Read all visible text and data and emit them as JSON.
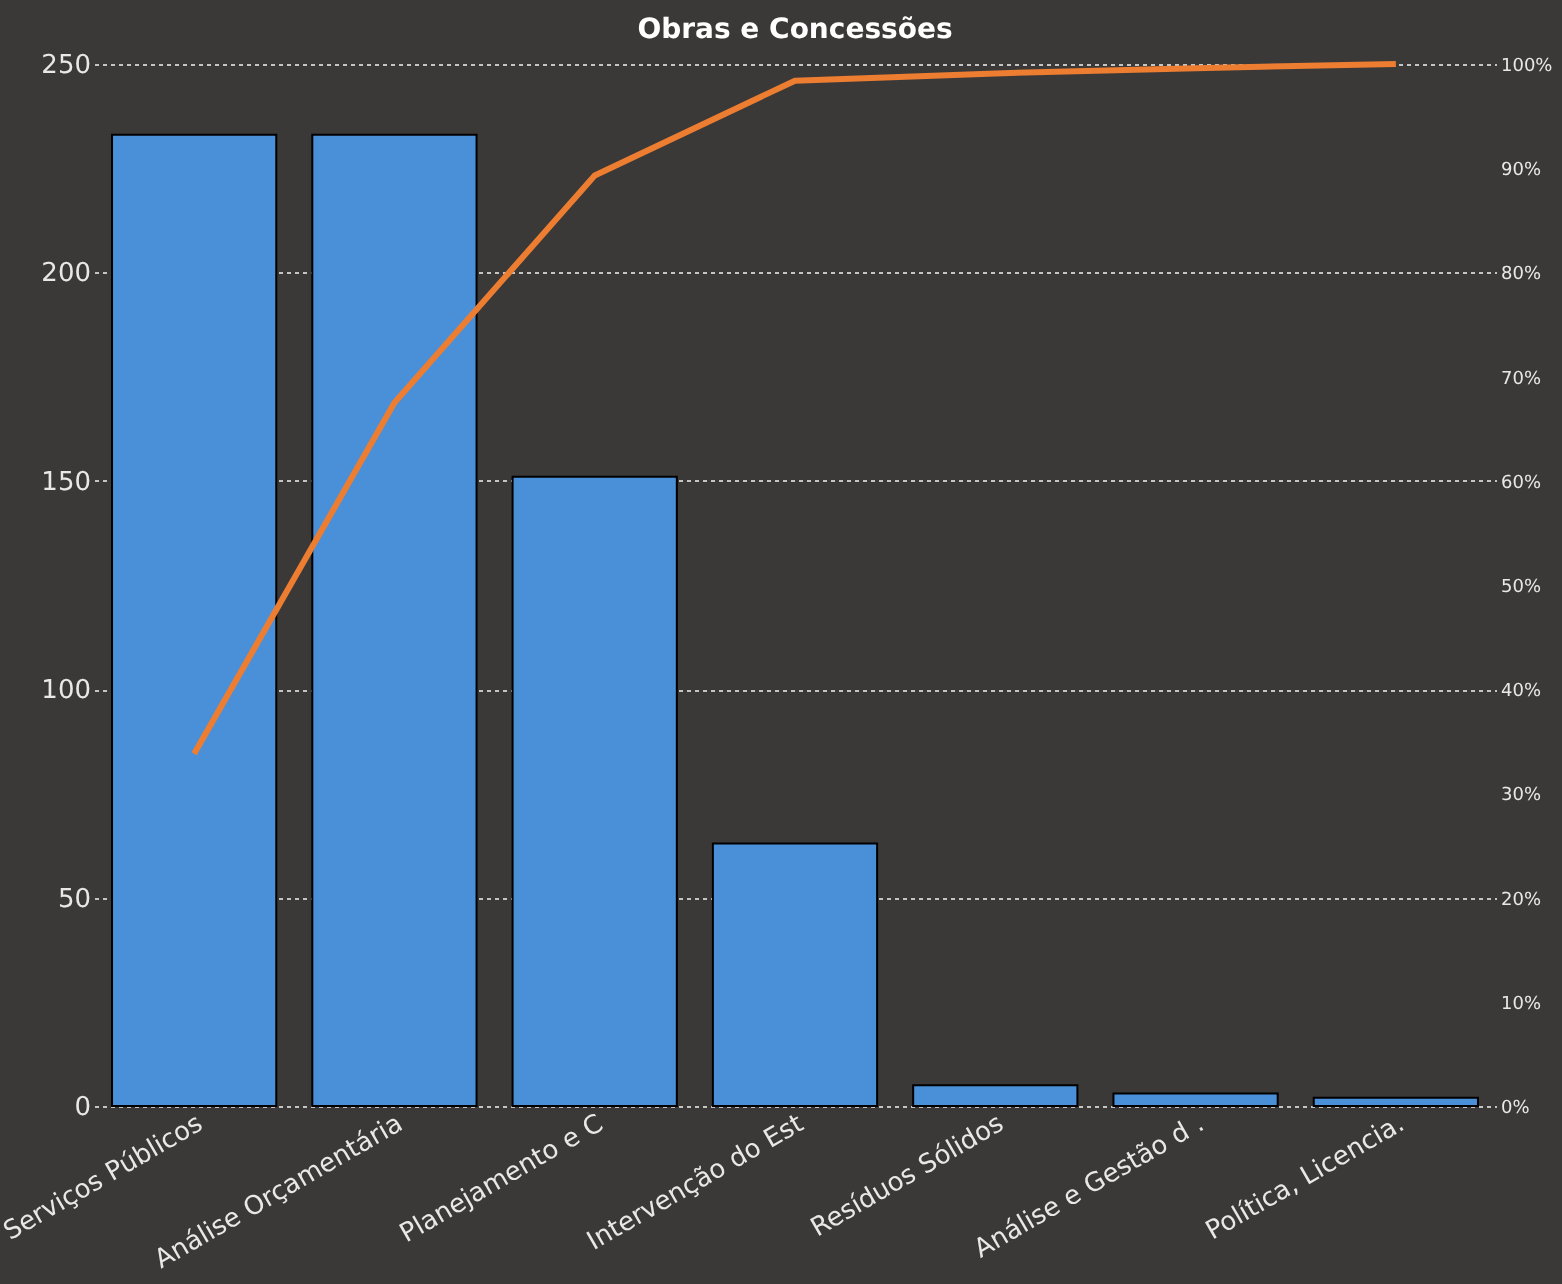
{
  "chart_data": {
    "type": "bar",
    "title": "Obras e Concessões",
    "categories": [
      "Serviços Públicos",
      "Análise Orçamentária",
      "Planejamento e C",
      "Intervenção do Est",
      "Resíduos Sólidos",
      "Análise e Gestão d .",
      "Política, Licencia."
    ],
    "series": [
      {
        "color": "#4a90d9",
        "values": [
          233,
          233,
          151,
          63,
          5,
          3,
          2
        ]
      },
      {
        "type": "line",
        "axis": "y2",
        "color": "#ed7d31",
        "values": [
          33.8,
          67.5,
          89.3,
          98.4,
          99.1,
          99.6,
          100
        ]
      }
    ],
    "ylim": [
      0,
      250
    ],
    "yticks": [
      0,
      50,
      100,
      150,
      200,
      250
    ],
    "y2lim": [
      0,
      100
    ],
    "y2ticks": [
      {
        "value": 0,
        "label": "0%"
      },
      {
        "value": 10,
        "label": "10%"
      },
      {
        "value": 20,
        "label": "20%"
      },
      {
        "value": 30,
        "label": "30%"
      },
      {
        "value": 40,
        "label": "40%"
      },
      {
        "value": 50,
        "label": "50%"
      },
      {
        "value": 60,
        "label": "60%"
      },
      {
        "value": 70,
        "label": "70%"
      },
      {
        "value": 80,
        "label": "80%"
      },
      {
        "value": 90,
        "label": "90%"
      },
      {
        "value": 100,
        "label": "100%"
      }
    ],
    "grid": "y",
    "marker": "none",
    "line_style": "solid"
  }
}
